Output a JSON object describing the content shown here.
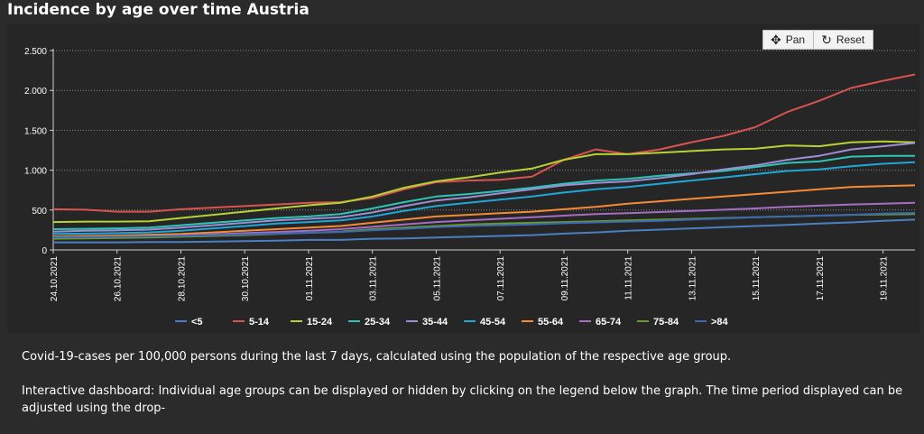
{
  "title": "Incidence by age over time Austria",
  "toolbar": {
    "pan_label": "Pan",
    "reset_label": "Reset",
    "pan_icon": "move-arrows-icon",
    "reset_icon": "reset-arrow-icon"
  },
  "description": "Covid-19-cases per 100,000 persons during the last 7 days, calculated using the population of the respective age group.",
  "description2": "Interactive dashboard: Individual age groups can be displayed or hidden by clicking on the legend below the graph. The time period displayed can be adjusted using the drop-",
  "chart_data": {
    "type": "line",
    "title": "",
    "xlabel": "",
    "ylabel": "",
    "ylim": [
      0,
      2500
    ],
    "yticks": [
      0,
      500,
      1000,
      1500,
      2000,
      2500
    ],
    "ytick_labels": [
      "0",
      "500",
      "1.000",
      "1.500",
      "2.000",
      "2.500"
    ],
    "xlim": [
      "2021-10-24",
      "2021-11-20"
    ],
    "xtick_labels": [
      "24.10.2021",
      "26.10.2021",
      "28.10.2021",
      "30.10.2021",
      "01.11.2021",
      "03.11.2021",
      "05.11.2021",
      "07.11.2021",
      "09.11.2021",
      "11.11.2021",
      "13.11.2021",
      "15.11.2021",
      "17.11.2021",
      "19.11.2021"
    ],
    "grid": true,
    "legend_position": "bottom",
    "x": [
      "2021-10-24",
      "2021-10-25",
      "2021-10-26",
      "2021-10-27",
      "2021-10-28",
      "2021-10-29",
      "2021-10-30",
      "2021-10-31",
      "2021-11-01",
      "2021-11-02",
      "2021-11-03",
      "2021-11-04",
      "2021-11-05",
      "2021-11-06",
      "2021-11-07",
      "2021-11-08",
      "2021-11-09",
      "2021-11-10",
      "2021-11-11",
      "2021-11-12",
      "2021-11-13",
      "2021-11-14",
      "2021-11-15",
      "2021-11-16",
      "2021-11-17",
      "2021-11-18",
      "2021-11-19",
      "2021-11-20"
    ],
    "series": [
      {
        "name": "<5",
        "color": "#4a7fc4",
        "values": [
          95,
          95,
          95,
          100,
          100,
          105,
          110,
          115,
          125,
          125,
          140,
          145,
          155,
          165,
          175,
          185,
          205,
          220,
          240,
          255,
          270,
          285,
          300,
          315,
          330,
          345,
          365,
          380
        ]
      },
      {
        "name": "5-14",
        "color": "#d9534f",
        "values": [
          510,
          505,
          480,
          480,
          510,
          530,
          550,
          570,
          590,
          600,
          650,
          760,
          850,
          870,
          880,
          920,
          1130,
          1260,
          1200,
          1260,
          1350,
          1430,
          1540,
          1730,
          1870,
          2030,
          2120,
          2200
        ]
      },
      {
        "name": "15-24",
        "color": "#b5d334",
        "values": [
          350,
          355,
          355,
          360,
          400,
          440,
          480,
          520,
          560,
          590,
          670,
          780,
          860,
          910,
          970,
          1020,
          1130,
          1200,
          1200,
          1220,
          1240,
          1260,
          1270,
          1310,
          1300,
          1350,
          1360,
          1350
        ]
      },
      {
        "name": "25-34",
        "color": "#2ec4b6",
        "values": [
          260,
          265,
          270,
          280,
          310,
          340,
          370,
          400,
          420,
          450,
          520,
          600,
          670,
          700,
          740,
          780,
          830,
          870,
          890,
          930,
          960,
          990,
          1040,
          1090,
          1110,
          1170,
          1180,
          1180
        ]
      },
      {
        "name": "35-44",
        "color": "#9b8fd6",
        "values": [
          230,
          240,
          245,
          255,
          280,
          310,
          340,
          370,
          390,
          410,
          470,
          550,
          620,
          660,
          710,
          760,
          810,
          840,
          860,
          900,
          950,
          1010,
          1060,
          1130,
          1180,
          1260,
          1300,
          1340
        ]
      },
      {
        "name": "45-54",
        "color": "#1fa7d9",
        "values": [
          200,
          205,
          210,
          220,
          240,
          270,
          300,
          330,
          350,
          370,
          420,
          490,
          550,
          590,
          630,
          670,
          720,
          760,
          790,
          830,
          870,
          910,
          950,
          990,
          1010,
          1050,
          1080,
          1100
        ]
      },
      {
        "name": "55-64",
        "color": "#f58b35",
        "values": [
          170,
          175,
          180,
          190,
          200,
          220,
          240,
          260,
          280,
          300,
          340,
          380,
          420,
          440,
          460,
          480,
          510,
          540,
          580,
          610,
          640,
          670,
          700,
          730,
          760,
          790,
          800,
          810
        ]
      },
      {
        "name": "65-74",
        "color": "#a56ec4",
        "values": [
          150,
          155,
          160,
          170,
          180,
          195,
          210,
          225,
          240,
          260,
          290,
          320,
          350,
          370,
          390,
          410,
          430,
          450,
          460,
          475,
          490,
          505,
          520,
          540,
          555,
          570,
          580,
          590
        ]
      },
      {
        "name": "75-84",
        "color": "#6a9a2e",
        "values": [
          140,
          145,
          150,
          155,
          165,
          175,
          185,
          200,
          215,
          230,
          260,
          280,
          300,
          320,
          330,
          340,
          350,
          360,
          370,
          380,
          390,
          400,
          410,
          420,
          430,
          440,
          445,
          450
        ]
      },
      {
        "name": ">84",
        "color": "#3c68b5",
        "values": [
          160,
          160,
          165,
          170,
          175,
          185,
          195,
          205,
          215,
          225,
          245,
          265,
          285,
          300,
          310,
          320,
          335,
          345,
          355,
          365,
          380,
          395,
          410,
          420,
          430,
          440,
          455,
          465
        ]
      }
    ]
  }
}
